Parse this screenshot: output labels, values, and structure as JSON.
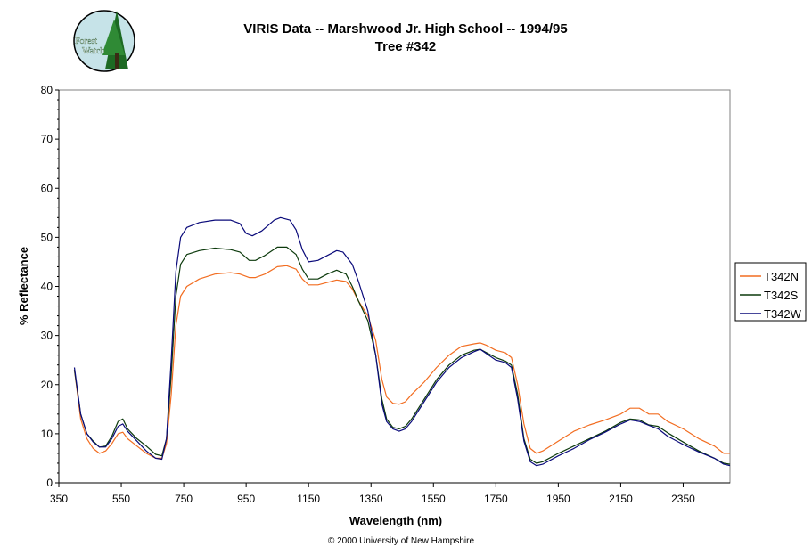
{
  "header": {
    "title": "VIRIS Data -- Marshwood Jr. High School -- 1994/95",
    "subtitle": "Tree #342"
  },
  "logo": {
    "line1": "Forest",
    "line2": "Watch"
  },
  "footer": {
    "copyright": "© 2000 University of New Hampshire"
  },
  "colors": {
    "T342N": "#f26d21",
    "T342S": "#0c3a0c",
    "T342W": "#0a0a7a"
  },
  "chart_data": {
    "type": "line",
    "title": "VIRIS Data -- Marshwood Jr. High School -- 1994/95",
    "subtitle": "Tree #342",
    "xlabel": "Wavelength (nm)",
    "ylabel": "% Reflectance",
    "xlim": [
      350,
      2500
    ],
    "ylim": [
      0,
      80
    ],
    "x_ticks": [
      350,
      550,
      750,
      950,
      1150,
      1350,
      1550,
      1750,
      1950,
      2150,
      2350
    ],
    "y_ticks": [
      0,
      10,
      20,
      30,
      40,
      50,
      60,
      70,
      80
    ],
    "grid": false,
    "legend_position": "right",
    "series": [
      {
        "name": "T342N",
        "color": "#f26d21",
        "points": [
          [
            400,
            23
          ],
          [
            420,
            13
          ],
          [
            440,
            9
          ],
          [
            460,
            7
          ],
          [
            480,
            6
          ],
          [
            500,
            6.5
          ],
          [
            520,
            8
          ],
          [
            540,
            10
          ],
          [
            555,
            10.3
          ],
          [
            570,
            9
          ],
          [
            600,
            7.5
          ],
          [
            630,
            6
          ],
          [
            660,
            5
          ],
          [
            680,
            5
          ],
          [
            695,
            8
          ],
          [
            710,
            18
          ],
          [
            725,
            32
          ],
          [
            740,
            38
          ],
          [
            760,
            40
          ],
          [
            800,
            41.5
          ],
          [
            850,
            42.5
          ],
          [
            900,
            42.8
          ],
          [
            930,
            42.5
          ],
          [
            960,
            41.8
          ],
          [
            980,
            41.8
          ],
          [
            1010,
            42.5
          ],
          [
            1050,
            44
          ],
          [
            1080,
            44.2
          ],
          [
            1110,
            43.5
          ],
          [
            1130,
            41.5
          ],
          [
            1150,
            40.3
          ],
          [
            1180,
            40.3
          ],
          [
            1210,
            40.8
          ],
          [
            1240,
            41.3
          ],
          [
            1270,
            41
          ],
          [
            1290,
            39.5
          ],
          [
            1310,
            37
          ],
          [
            1340,
            34
          ],
          [
            1365,
            29
          ],
          [
            1385,
            21
          ],
          [
            1400,
            17.5
          ],
          [
            1420,
            16.2
          ],
          [
            1440,
            16
          ],
          [
            1460,
            16.5
          ],
          [
            1480,
            18
          ],
          [
            1520,
            20.5
          ],
          [
            1560,
            23.5
          ],
          [
            1600,
            26
          ],
          [
            1640,
            27.8
          ],
          [
            1680,
            28.3
          ],
          [
            1700,
            28.5
          ],
          [
            1720,
            28
          ],
          [
            1750,
            27
          ],
          [
            1780,
            26.5
          ],
          [
            1800,
            25.5
          ],
          [
            1820,
            20
          ],
          [
            1840,
            12
          ],
          [
            1860,
            7
          ],
          [
            1880,
            6
          ],
          [
            1900,
            6.5
          ],
          [
            1950,
            8.5
          ],
          [
            2000,
            10.5
          ],
          [
            2050,
            11.8
          ],
          [
            2100,
            12.8
          ],
          [
            2150,
            14
          ],
          [
            2180,
            15.2
          ],
          [
            2210,
            15.2
          ],
          [
            2240,
            14
          ],
          [
            2270,
            14
          ],
          [
            2300,
            12.5
          ],
          [
            2350,
            11
          ],
          [
            2400,
            9
          ],
          [
            2450,
            7.5
          ],
          [
            2480,
            6
          ],
          [
            2500,
            6
          ]
        ]
      },
      {
        "name": "T342S",
        "color": "#0c3a0c",
        "points": [
          [
            400,
            23
          ],
          [
            420,
            14
          ],
          [
            440,
            10
          ],
          [
            460,
            8.5
          ],
          [
            480,
            7.3
          ],
          [
            500,
            7.5
          ],
          [
            520,
            9.5
          ],
          [
            540,
            12.5
          ],
          [
            555,
            13
          ],
          [
            570,
            11
          ],
          [
            600,
            9
          ],
          [
            630,
            7.5
          ],
          [
            660,
            5.8
          ],
          [
            680,
            5.5
          ],
          [
            695,
            9
          ],
          [
            710,
            22
          ],
          [
            725,
            38
          ],
          [
            740,
            44.5
          ],
          [
            760,
            46.5
          ],
          [
            800,
            47.3
          ],
          [
            850,
            47.8
          ],
          [
            900,
            47.5
          ],
          [
            930,
            47
          ],
          [
            960,
            45.3
          ],
          [
            980,
            45.3
          ],
          [
            1010,
            46.3
          ],
          [
            1050,
            48
          ],
          [
            1080,
            48
          ],
          [
            1110,
            46.5
          ],
          [
            1130,
            43.5
          ],
          [
            1150,
            41.5
          ],
          [
            1180,
            41.5
          ],
          [
            1210,
            42.5
          ],
          [
            1240,
            43.3
          ],
          [
            1270,
            42.5
          ],
          [
            1290,
            40
          ],
          [
            1310,
            37
          ],
          [
            1340,
            33
          ],
          [
            1365,
            26
          ],
          [
            1385,
            17
          ],
          [
            1400,
            13
          ],
          [
            1420,
            11.3
          ],
          [
            1440,
            11
          ],
          [
            1460,
            11.5
          ],
          [
            1480,
            13
          ],
          [
            1520,
            17
          ],
          [
            1560,
            21
          ],
          [
            1600,
            24
          ],
          [
            1640,
            26
          ],
          [
            1680,
            27
          ],
          [
            1700,
            27.2
          ],
          [
            1720,
            26.5
          ],
          [
            1750,
            25.5
          ],
          [
            1780,
            24.8
          ],
          [
            1800,
            24
          ],
          [
            1820,
            18
          ],
          [
            1840,
            9
          ],
          [
            1860,
            4.8
          ],
          [
            1880,
            4
          ],
          [
            1900,
            4.3
          ],
          [
            1950,
            6
          ],
          [
            2000,
            7.5
          ],
          [
            2050,
            9
          ],
          [
            2100,
            10.5
          ],
          [
            2150,
            12.3
          ],
          [
            2180,
            13
          ],
          [
            2210,
            12.8
          ],
          [
            2240,
            11.8
          ],
          [
            2270,
            11.5
          ],
          [
            2300,
            10.2
          ],
          [
            2350,
            8.3
          ],
          [
            2400,
            6.5
          ],
          [
            2450,
            5
          ],
          [
            2480,
            4
          ],
          [
            2500,
            3.8
          ]
        ]
      },
      {
        "name": "T342W",
        "color": "#0a0a7a",
        "points": [
          [
            400,
            23.5
          ],
          [
            420,
            14
          ],
          [
            440,
            10
          ],
          [
            460,
            8.3
          ],
          [
            480,
            7.3
          ],
          [
            500,
            7.3
          ],
          [
            520,
            9
          ],
          [
            540,
            11.5
          ],
          [
            555,
            12
          ],
          [
            570,
            10.5
          ],
          [
            600,
            8.5
          ],
          [
            630,
            6.5
          ],
          [
            660,
            5
          ],
          [
            680,
            4.8
          ],
          [
            695,
            9
          ],
          [
            710,
            25
          ],
          [
            725,
            43
          ],
          [
            740,
            50
          ],
          [
            760,
            52
          ],
          [
            800,
            53
          ],
          [
            850,
            53.5
          ],
          [
            900,
            53.5
          ],
          [
            930,
            52.8
          ],
          [
            950,
            50.8
          ],
          [
            970,
            50.3
          ],
          [
            1000,
            51.3
          ],
          [
            1040,
            53.5
          ],
          [
            1060,
            54
          ],
          [
            1090,
            53.5
          ],
          [
            1110,
            51.5
          ],
          [
            1130,
            47.5
          ],
          [
            1150,
            45
          ],
          [
            1180,
            45.3
          ],
          [
            1210,
            46.3
          ],
          [
            1240,
            47.3
          ],
          [
            1260,
            47
          ],
          [
            1290,
            44.5
          ],
          [
            1310,
            41
          ],
          [
            1340,
            35
          ],
          [
            1365,
            26
          ],
          [
            1385,
            16
          ],
          [
            1400,
            12.5
          ],
          [
            1420,
            11
          ],
          [
            1440,
            10.5
          ],
          [
            1460,
            11
          ],
          [
            1480,
            12.5
          ],
          [
            1520,
            16.5
          ],
          [
            1560,
            20.5
          ],
          [
            1600,
            23.5
          ],
          [
            1640,
            25.5
          ],
          [
            1680,
            26.7
          ],
          [
            1700,
            27.2
          ],
          [
            1720,
            26.3
          ],
          [
            1750,
            25
          ],
          [
            1780,
            24.5
          ],
          [
            1800,
            23.5
          ],
          [
            1820,
            17
          ],
          [
            1840,
            8.5
          ],
          [
            1860,
            4.3
          ],
          [
            1880,
            3.5
          ],
          [
            1900,
            3.8
          ],
          [
            1950,
            5.5
          ],
          [
            2000,
            7
          ],
          [
            2050,
            8.8
          ],
          [
            2100,
            10.3
          ],
          [
            2150,
            12
          ],
          [
            2180,
            12.8
          ],
          [
            2210,
            12.5
          ],
          [
            2240,
            11.7
          ],
          [
            2270,
            11
          ],
          [
            2300,
            9.5
          ],
          [
            2350,
            7.8
          ],
          [
            2400,
            6.3
          ],
          [
            2450,
            5
          ],
          [
            2480,
            3.8
          ],
          [
            2500,
            3.5
          ]
        ]
      }
    ]
  }
}
